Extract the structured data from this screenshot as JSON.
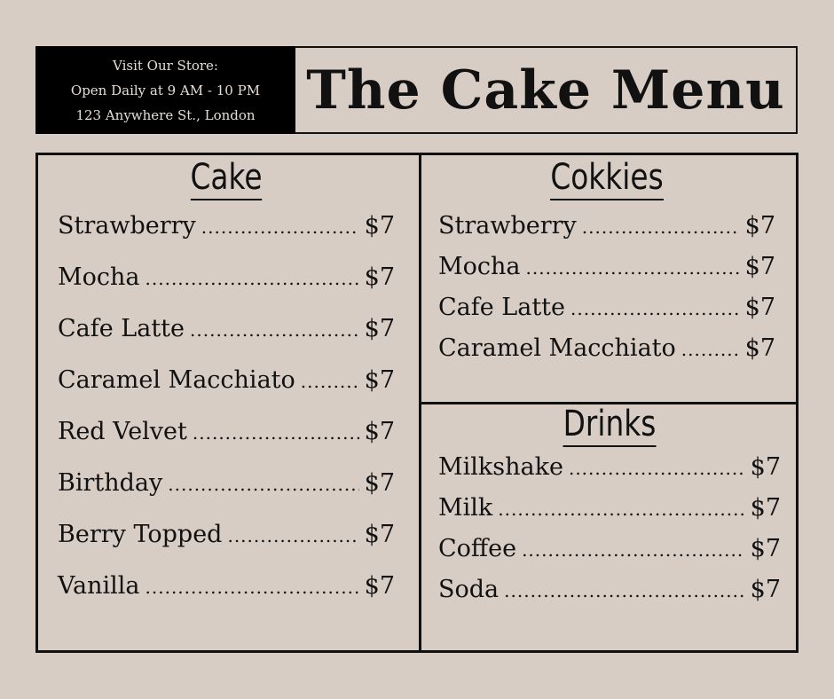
{
  "store": {
    "line1": "Visit Our Store:",
    "line2": "Open Daily at 9 AM - 10 PM",
    "line3": "123 Anywhere St., London"
  },
  "title": "The Cake Menu",
  "sections": {
    "cake": {
      "heading": "Cake",
      "items": [
        {
          "name": "Strawberry",
          "price": "$7"
        },
        {
          "name": "Mocha",
          "price": "$7"
        },
        {
          "name": "Cafe Latte",
          "price": "$7"
        },
        {
          "name": "Caramel Macchiato",
          "price": "$7"
        },
        {
          "name": "Red Velvet",
          "price": "$7"
        },
        {
          "name": "Birthday",
          "price": "$7"
        },
        {
          "name": "Berry Topped",
          "price": "$7"
        },
        {
          "name": "Vanilla",
          "price": "$7"
        }
      ]
    },
    "cookies": {
      "heading": "Cokkies",
      "items": [
        {
          "name": "Strawberry",
          "price": "$7"
        },
        {
          "name": "Mocha",
          "price": "$7"
        },
        {
          "name": "Cafe Latte",
          "price": "$7"
        },
        {
          "name": "Caramel Macchiato",
          "price": "$7"
        }
      ]
    },
    "drinks": {
      "heading": "Drinks",
      "items": [
        {
          "name": "Milkshake",
          "price": "$7"
        },
        {
          "name": "Milk",
          "price": "$7"
        },
        {
          "name": "Coffee",
          "price": "$7"
        },
        {
          "name": "Soda",
          "price": "$7"
        }
      ]
    }
  }
}
